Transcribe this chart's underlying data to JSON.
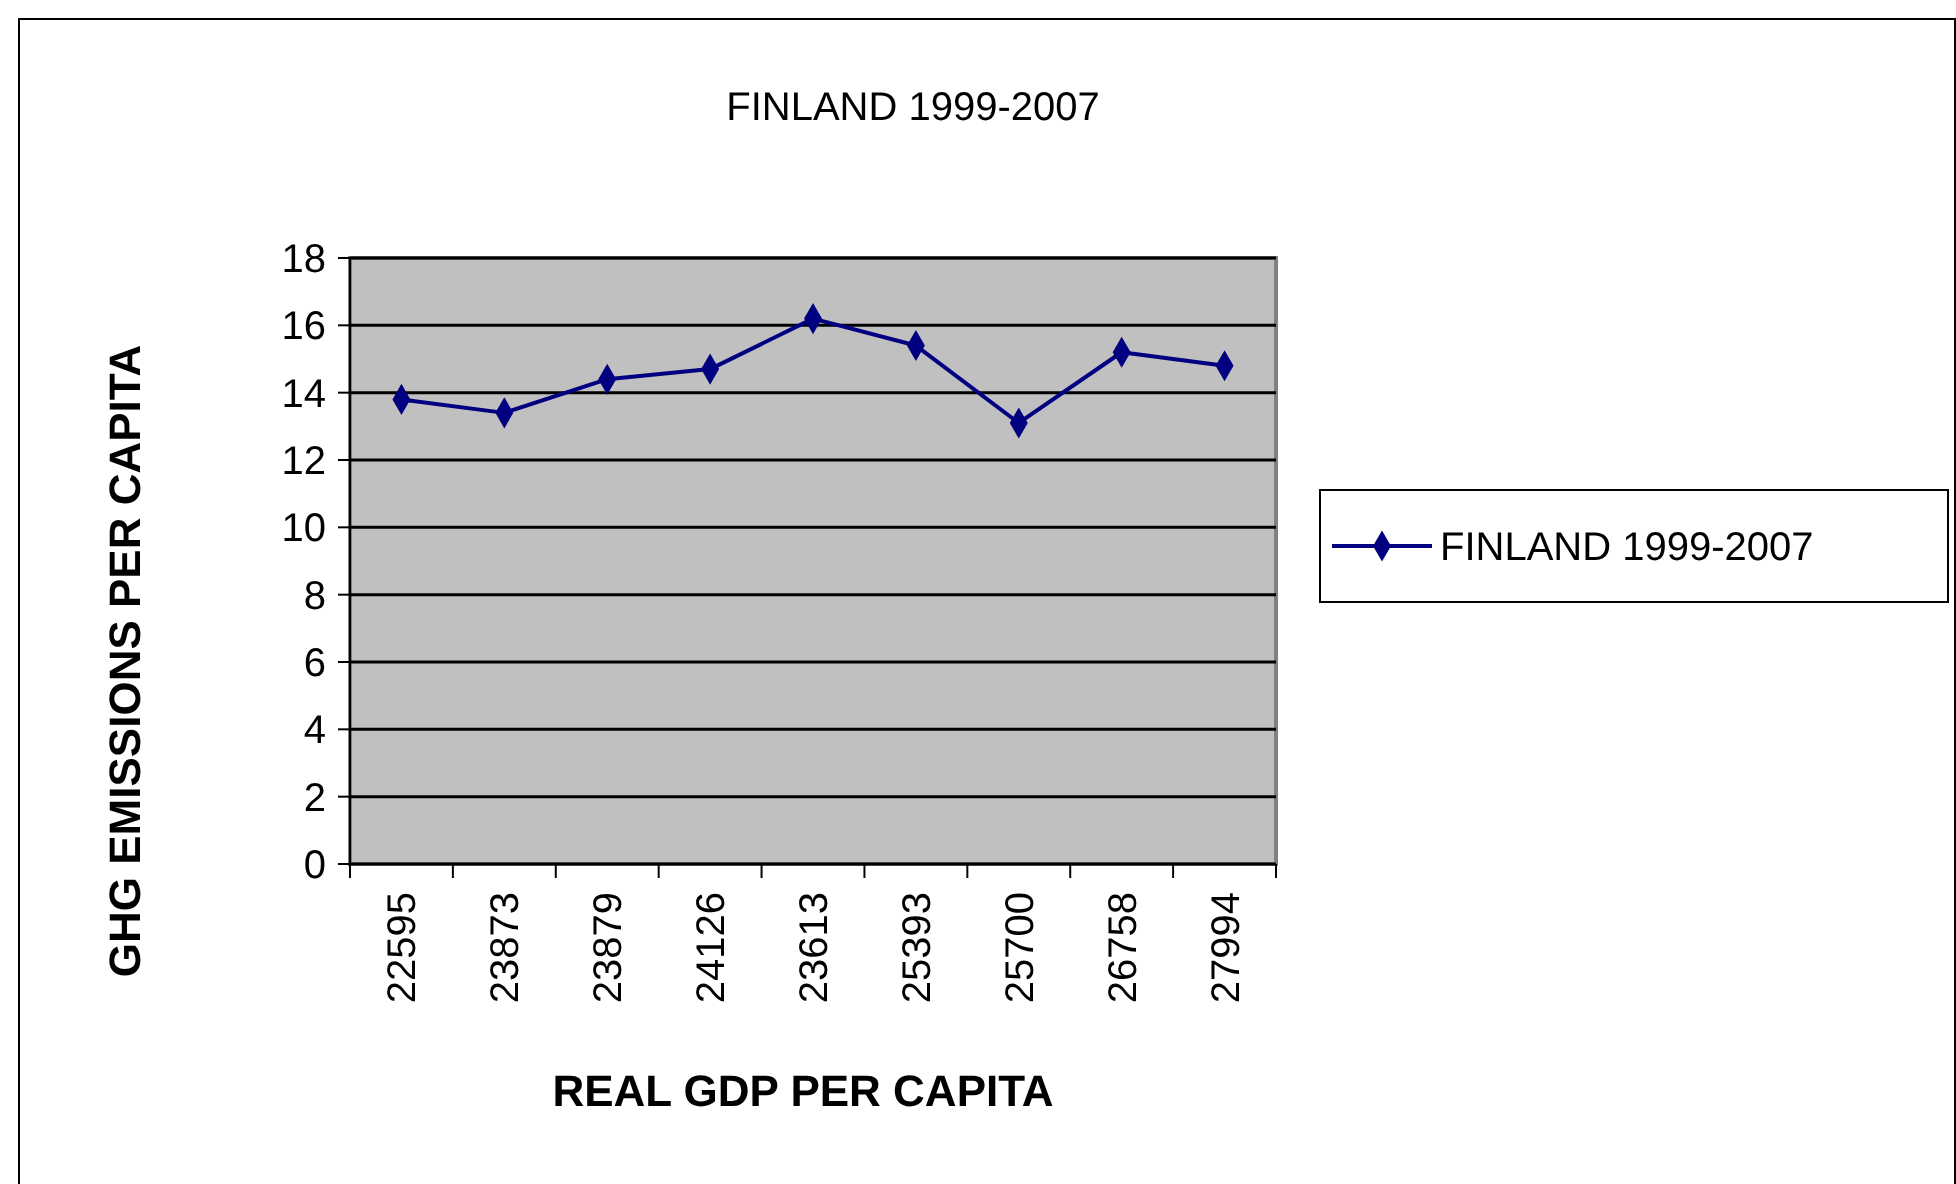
{
  "chart_data": {
    "type": "line",
    "title": "FINLAND 1999-2007",
    "xlabel": "REAL GDP PER CAPITA",
    "ylabel": "GHG EMISSIONS PER CAPITA",
    "categories": [
      "22595",
      "23873",
      "23879",
      "24126",
      "23613",
      "25393",
      "25700",
      "26758",
      "27994"
    ],
    "series": [
      {
        "name": "FINLAND 1999-2007",
        "color": "#000080",
        "values": [
          13.8,
          13.4,
          14.4,
          14.7,
          16.2,
          15.4,
          13.1,
          15.2,
          14.8
        ]
      }
    ],
    "ylim": [
      0,
      18
    ],
    "yticks": [
      0,
      2,
      4,
      6,
      8,
      10,
      12,
      14,
      16,
      18
    ],
    "grid": "y",
    "legend": "right",
    "marker": "diamond",
    "line_style": "solid"
  }
}
